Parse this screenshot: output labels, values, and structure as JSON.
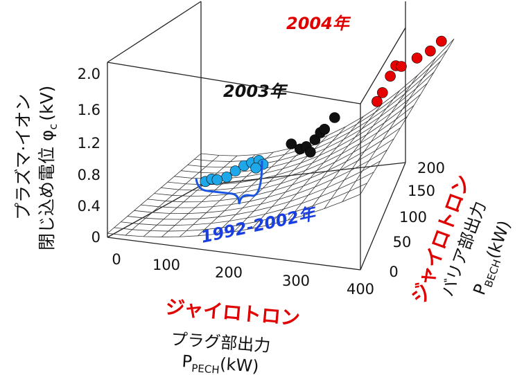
{
  "chart_data": {
    "type": "3d-surface-scatter",
    "z_axis": {
      "label_line1": "プラズマ·イオン",
      "label_line2": "閉じ込め電位",
      "symbol": "φ",
      "subscript": "c",
      "unit": "(kV)",
      "ticks": [
        "0",
        "0.4",
        "0.8",
        "1.2",
        "1.6",
        "2.0"
      ],
      "range": [
        0,
        2.2
      ]
    },
    "x_axis": {
      "label_red": "ジャイロトロン",
      "label_black": "プラグ部出力",
      "symbol": "P",
      "subscript": "PECH",
      "unit": "(kW)",
      "ticks": [
        "0",
        "100",
        "200",
        "300",
        "400"
      ],
      "range": [
        0,
        400
      ]
    },
    "y_axis": {
      "label_red": "ジャイロトロン",
      "label_black": "バリア部出力",
      "symbol": "P",
      "subscript": "BECH",
      "unit": "(kW)",
      "ticks": [
        "0",
        "50",
        "100",
        "150",
        "200"
      ],
      "range": [
        0,
        200
      ]
    },
    "annotations": [
      {
        "text": "1992-2002年",
        "color": "#1a3fe0"
      },
      {
        "text": "2003年",
        "color": "#111111"
      },
      {
        "text": "2004年",
        "color": "#e00000"
      }
    ],
    "series": [
      {
        "name": "1992-2002年",
        "color": "#1ea8ea",
        "points": [
          [
            140,
            20,
            0.78
          ],
          [
            150,
            20,
            0.82
          ],
          [
            170,
            25,
            0.85
          ],
          [
            180,
            30,
            0.92
          ],
          [
            190,
            35,
            0.98
          ],
          [
            200,
            38,
            1.02
          ],
          [
            210,
            40,
            1.05
          ],
          [
            215,
            42,
            1.0
          ],
          [
            205,
            40,
            0.95
          ],
          [
            155,
            25,
            0.8
          ]
        ]
      },
      {
        "name": "2003年",
        "color": "#111111",
        "points": [
          [
            250,
            55,
            1.25
          ],
          [
            260,
            60,
            1.18
          ],
          [
            270,
            60,
            1.22
          ],
          [
            280,
            65,
            1.3
          ],
          [
            285,
            70,
            1.38
          ],
          [
            290,
            72,
            1.42
          ],
          [
            300,
            80,
            1.55
          ],
          [
            275,
            62,
            1.15
          ]
        ]
      },
      {
        "name": "2004年",
        "color": "#e60000",
        "points": [
          [
            330,
            130,
            1.62
          ],
          [
            335,
            135,
            1.72
          ],
          [
            340,
            145,
            1.9
          ],
          [
            345,
            150,
            2.02
          ],
          [
            350,
            155,
            2.0
          ],
          [
            360,
            175,
            2.05
          ],
          [
            370,
            190,
            2.1
          ],
          [
            380,
            200,
            2.2
          ]
        ]
      }
    ]
  }
}
